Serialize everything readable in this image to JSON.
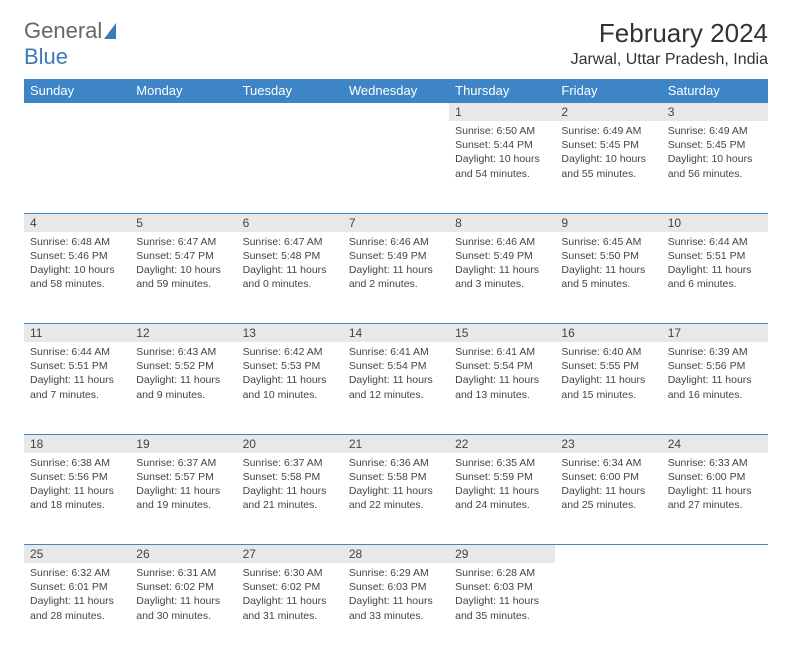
{
  "logo": {
    "part1": "General",
    "part2": "Blue"
  },
  "title": "February 2024",
  "location": "Jarwal, Uttar Pradesh, India",
  "header_bg": "#3d85c6",
  "daynum_bg": "#e8e8e8",
  "weekdays": [
    "Sunday",
    "Monday",
    "Tuesday",
    "Wednesday",
    "Thursday",
    "Friday",
    "Saturday"
  ],
  "weeks": [
    [
      null,
      null,
      null,
      null,
      {
        "n": "1",
        "sr": "6:50 AM",
        "ss": "5:44 PM",
        "dl": "10 hours and 54 minutes."
      },
      {
        "n": "2",
        "sr": "6:49 AM",
        "ss": "5:45 PM",
        "dl": "10 hours and 55 minutes."
      },
      {
        "n": "3",
        "sr": "6:49 AM",
        "ss": "5:45 PM",
        "dl": "10 hours and 56 minutes."
      }
    ],
    [
      {
        "n": "4",
        "sr": "6:48 AM",
        "ss": "5:46 PM",
        "dl": "10 hours and 58 minutes."
      },
      {
        "n": "5",
        "sr": "6:47 AM",
        "ss": "5:47 PM",
        "dl": "10 hours and 59 minutes."
      },
      {
        "n": "6",
        "sr": "6:47 AM",
        "ss": "5:48 PM",
        "dl": "11 hours and 0 minutes."
      },
      {
        "n": "7",
        "sr": "6:46 AM",
        "ss": "5:49 PM",
        "dl": "11 hours and 2 minutes."
      },
      {
        "n": "8",
        "sr": "6:46 AM",
        "ss": "5:49 PM",
        "dl": "11 hours and 3 minutes."
      },
      {
        "n": "9",
        "sr": "6:45 AM",
        "ss": "5:50 PM",
        "dl": "11 hours and 5 minutes."
      },
      {
        "n": "10",
        "sr": "6:44 AM",
        "ss": "5:51 PM",
        "dl": "11 hours and 6 minutes."
      }
    ],
    [
      {
        "n": "11",
        "sr": "6:44 AM",
        "ss": "5:51 PM",
        "dl": "11 hours and 7 minutes."
      },
      {
        "n": "12",
        "sr": "6:43 AM",
        "ss": "5:52 PM",
        "dl": "11 hours and 9 minutes."
      },
      {
        "n": "13",
        "sr": "6:42 AM",
        "ss": "5:53 PM",
        "dl": "11 hours and 10 minutes."
      },
      {
        "n": "14",
        "sr": "6:41 AM",
        "ss": "5:54 PM",
        "dl": "11 hours and 12 minutes."
      },
      {
        "n": "15",
        "sr": "6:41 AM",
        "ss": "5:54 PM",
        "dl": "11 hours and 13 minutes."
      },
      {
        "n": "16",
        "sr": "6:40 AM",
        "ss": "5:55 PM",
        "dl": "11 hours and 15 minutes."
      },
      {
        "n": "17",
        "sr": "6:39 AM",
        "ss": "5:56 PM",
        "dl": "11 hours and 16 minutes."
      }
    ],
    [
      {
        "n": "18",
        "sr": "6:38 AM",
        "ss": "5:56 PM",
        "dl": "11 hours and 18 minutes."
      },
      {
        "n": "19",
        "sr": "6:37 AM",
        "ss": "5:57 PM",
        "dl": "11 hours and 19 minutes."
      },
      {
        "n": "20",
        "sr": "6:37 AM",
        "ss": "5:58 PM",
        "dl": "11 hours and 21 minutes."
      },
      {
        "n": "21",
        "sr": "6:36 AM",
        "ss": "5:58 PM",
        "dl": "11 hours and 22 minutes."
      },
      {
        "n": "22",
        "sr": "6:35 AM",
        "ss": "5:59 PM",
        "dl": "11 hours and 24 minutes."
      },
      {
        "n": "23",
        "sr": "6:34 AM",
        "ss": "6:00 PM",
        "dl": "11 hours and 25 minutes."
      },
      {
        "n": "24",
        "sr": "6:33 AM",
        "ss": "6:00 PM",
        "dl": "11 hours and 27 minutes."
      }
    ],
    [
      {
        "n": "25",
        "sr": "6:32 AM",
        "ss": "6:01 PM",
        "dl": "11 hours and 28 minutes."
      },
      {
        "n": "26",
        "sr": "6:31 AM",
        "ss": "6:02 PM",
        "dl": "11 hours and 30 minutes."
      },
      {
        "n": "27",
        "sr": "6:30 AM",
        "ss": "6:02 PM",
        "dl": "11 hours and 31 minutes."
      },
      {
        "n": "28",
        "sr": "6:29 AM",
        "ss": "6:03 PM",
        "dl": "11 hours and 33 minutes."
      },
      {
        "n": "29",
        "sr": "6:28 AM",
        "ss": "6:03 PM",
        "dl": "11 hours and 35 minutes."
      },
      null,
      null
    ]
  ],
  "labels": {
    "sunrise": "Sunrise:",
    "sunset": "Sunset:",
    "daylight": "Daylight:"
  }
}
